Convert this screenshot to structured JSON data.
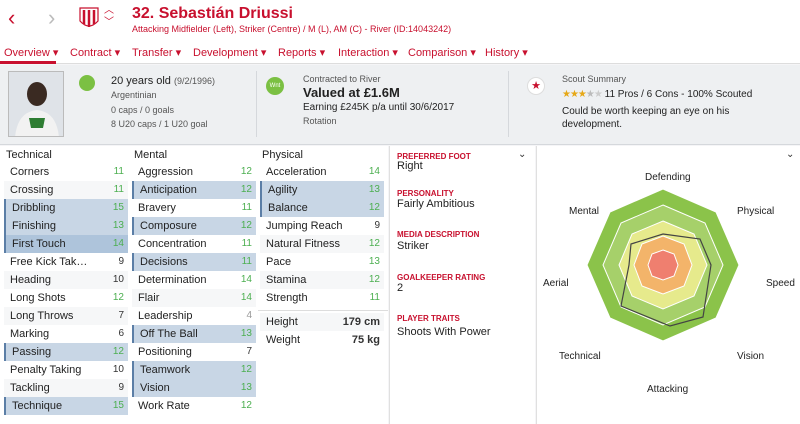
{
  "header": {
    "back_icon": "chevron-left-icon",
    "forward_icon": "chevron-right-icon",
    "player_name": "32. Sebastián Driussi",
    "player_subtitle": "Attacking Midfielder (Left), Striker (Centre) / M (L), AM (C) - River (ID:14043242)",
    "accent": "#c8102e"
  },
  "tabs": [
    {
      "label": "Overview ▾"
    },
    {
      "label": "Contract ▾"
    },
    {
      "label": "Transfer ▾"
    },
    {
      "label": "Development ▾"
    },
    {
      "label": "Reports ▾"
    },
    {
      "label": "Interaction ▾"
    },
    {
      "label": "Comparison ▾"
    },
    {
      "label": "History ▾"
    }
  ],
  "profile": {
    "age": "20 years old",
    "dob": "(9/2/1996)",
    "nationality": "Argentinian",
    "caps": "0 caps / 0 goals",
    "u20": "8 U20 caps / 1 U20 goal"
  },
  "contract": {
    "club_badge": "Wnt",
    "contracted_to": "Contracted to River",
    "value": "Valued at £1.6M",
    "earning": "Earning £245K p/a until 30/6/2017",
    "status": "Rotation"
  },
  "scout": {
    "title": "Scout Summary",
    "summary": "11 Pros / 6 Cons - 100% Scouted",
    "comment": "Could be worth keeping an eye on his development.",
    "stars": 3.5
  },
  "technical": {
    "heading": "Technical",
    "rows": [
      {
        "label": "Corners",
        "value": "11"
      },
      {
        "label": "Crossing",
        "value": "11"
      },
      {
        "label": "Dribbling",
        "value": "15"
      },
      {
        "label": "Finishing",
        "value": "13"
      },
      {
        "label": "First Touch",
        "value": "14"
      },
      {
        "label": "Free Kick Tak…",
        "value": "9"
      },
      {
        "label": "Heading",
        "value": "10"
      },
      {
        "label": "Long Shots",
        "value": "12"
      },
      {
        "label": "Long Throws",
        "value": "7"
      },
      {
        "label": "Marking",
        "value": "6"
      },
      {
        "label": "Passing",
        "value": "12"
      },
      {
        "label": "Penalty Taking",
        "value": "10"
      },
      {
        "label": "Tackling",
        "value": "9"
      },
      {
        "label": "Technique",
        "value": "15"
      }
    ]
  },
  "mental": {
    "heading": "Mental",
    "rows": [
      {
        "label": "Aggression",
        "value": "12"
      },
      {
        "label": "Anticipation",
        "value": "12"
      },
      {
        "label": "Bravery",
        "value": "11"
      },
      {
        "label": "Composure",
        "value": "12"
      },
      {
        "label": "Concentration",
        "value": "11"
      },
      {
        "label": "Decisions",
        "value": "11"
      },
      {
        "label": "Determination",
        "value": "14"
      },
      {
        "label": "Flair",
        "value": "14"
      },
      {
        "label": "Leadership",
        "value": "4"
      },
      {
        "label": "Off The Ball",
        "value": "13"
      },
      {
        "label": "Positioning",
        "value": "7"
      },
      {
        "label": "Teamwork",
        "value": "12"
      },
      {
        "label": "Vision",
        "value": "13"
      },
      {
        "label": "Work Rate",
        "value": "12"
      }
    ]
  },
  "physical": {
    "heading": "Physical",
    "rows": [
      {
        "label": "Acceleration",
        "value": "14"
      },
      {
        "label": "Agility",
        "value": "13"
      },
      {
        "label": "Balance",
        "value": "12"
      },
      {
        "label": "Jumping Reach",
        "value": "9"
      },
      {
        "label": "Natural Fitness",
        "value": "12"
      },
      {
        "label": "Pace",
        "value": "13"
      },
      {
        "label": "Stamina",
        "value": "12"
      },
      {
        "label": "Strength",
        "value": "11"
      }
    ],
    "height_label": "Height",
    "height_value": "179 cm",
    "weight_label": "Weight",
    "weight_value": "75 kg"
  },
  "meta": {
    "foot_h": "PREFERRED FOOT",
    "foot_v": "Right",
    "pers_h": "PERSONALITY",
    "pers_v": "Fairly Ambitious",
    "media_h": "MEDIA DESCRIPTION",
    "media_v": "Striker",
    "gk_h": "GOALKEEPER RATING",
    "gk_v": "2",
    "traits_h": "PLAYER TRAITS",
    "traits_v": "Shoots With Power"
  },
  "radar": {
    "labels": {
      "defending": "Defending",
      "physical": "Physical",
      "speed": "Speed",
      "vision": "Vision",
      "attacking": "Attacking",
      "technical": "Technical",
      "aerial": "Aerial",
      "mental": "Mental"
    }
  }
}
